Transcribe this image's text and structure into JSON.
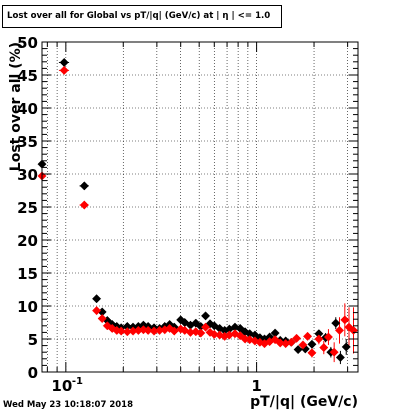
{
  "title": "Lost over all for Global vs pT/|q| (GeV/c) at | η | <= 1.0",
  "timestamp": "Wed May 23 10:18:07 2018",
  "colors": {
    "series_black": "#000000",
    "series_red": "#ff0000",
    "frame": "#000000",
    "grid": "#000000"
  },
  "chart_data": {
    "type": "scatter",
    "title": "Lost over all for Global vs pT/|q| (GeV/c) at | η | <= 1.0",
    "xlabel": "pT/|q| (GeV/c)",
    "ylabel": "Lost over all (%)",
    "x_scale": "log",
    "xlim": [
      0.075,
      3.4
    ],
    "ylim": [
      0,
      50
    ],
    "grid": true,
    "x_tick_labels": [
      {
        "value": 0.1,
        "label": "10",
        "exp": "-1"
      },
      {
        "value": 1,
        "label": "1",
        "exp": ""
      }
    ],
    "y_tick_labels": [
      "0",
      "5",
      "10",
      "15",
      "20",
      "25",
      "30",
      "35",
      "40",
      "45",
      "50"
    ],
    "series": [
      {
        "color": "#000000",
        "points": [
          [
            0.075,
            31.5,
            0,
            0.5
          ],
          [
            0.098,
            46.9,
            0.006,
            0.5
          ],
          [
            0.125,
            28.2,
            0.007,
            0.4
          ],
          [
            0.145,
            11.1,
            0.004,
            0.3
          ],
          [
            0.155,
            9.1,
            0.004,
            0.3
          ],
          [
            0.165,
            7.8,
            0.004,
            0.3
          ],
          [
            0.175,
            7.2,
            0.004,
            0.3
          ],
          [
            0.185,
            6.9,
            0.004,
            0.3
          ],
          [
            0.195,
            6.7,
            0.004,
            0.3
          ],
          [
            0.21,
            6.9,
            0.005,
            0.3
          ],
          [
            0.225,
            6.8,
            0.005,
            0.3
          ],
          [
            0.24,
            6.9,
            0.005,
            0.3
          ],
          [
            0.255,
            7.1,
            0.006,
            0.3
          ],
          [
            0.27,
            6.9,
            0.006,
            0.3
          ],
          [
            0.29,
            6.7,
            0.006,
            0.3
          ],
          [
            0.31,
            6.6,
            0.007,
            0.3
          ],
          [
            0.33,
            6.9,
            0.007,
            0.3
          ],
          [
            0.35,
            7.2,
            0.008,
            0.3
          ],
          [
            0.37,
            6.8,
            0.008,
            0.3
          ],
          [
            0.4,
            7.9,
            0.009,
            0.3
          ],
          [
            0.42,
            7.5,
            0.009,
            0.3
          ],
          [
            0.45,
            7.1,
            0.01,
            0.3
          ],
          [
            0.48,
            7.4,
            0.01,
            0.3
          ],
          [
            0.51,
            6.9,
            0.011,
            0.3
          ],
          [
            0.54,
            8.5,
            0.012,
            0.3
          ],
          [
            0.57,
            7.3,
            0.012,
            0.3
          ],
          [
            0.6,
            7.0,
            0.013,
            0.3
          ],
          [
            0.64,
            6.6,
            0.014,
            0.3
          ],
          [
            0.68,
            6.3,
            0.015,
            0.3
          ],
          [
            0.72,
            6.5,
            0.016,
            0.3
          ],
          [
            0.77,
            6.8,
            0.017,
            0.3
          ],
          [
            0.82,
            6.6,
            0.018,
            0.3
          ],
          [
            0.87,
            6.1,
            0.019,
            0.3
          ],
          [
            0.92,
            5.8,
            0.02,
            0.3
          ],
          [
            0.98,
            5.6,
            0.021,
            0.3
          ],
          [
            1.04,
            5.2,
            0.023,
            0.3
          ],
          [
            1.1,
            5.0,
            0.024,
            0.3
          ],
          [
            1.17,
            5.3,
            0.026,
            0.3
          ],
          [
            1.25,
            5.9,
            0.027,
            0.4
          ],
          [
            1.33,
            4.8,
            0.029,
            0.4
          ],
          [
            1.42,
            4.7,
            0.031,
            0.4
          ],
          [
            1.52,
            4.5,
            0.033,
            0.4
          ],
          [
            1.65,
            3.4,
            0.04,
            0.5
          ],
          [
            1.8,
            3.5,
            0.04,
            0.5
          ],
          [
            1.95,
            4.2,
            0.04,
            0.5
          ],
          [
            2.12,
            5.8,
            0.05,
            0.6
          ],
          [
            2.3,
            5.2,
            0.05,
            0.7
          ],
          [
            2.45,
            3.0,
            0.05,
            0.8
          ],
          [
            2.6,
            7.4,
            0.05,
            0.9
          ],
          [
            2.75,
            2.2,
            0.05,
            1.0
          ],
          [
            2.95,
            3.8,
            0.05,
            1.2
          ]
        ]
      },
      {
        "color": "#ff0000",
        "points": [
          [
            0.075,
            29.7,
            0,
            0.5
          ],
          [
            0.098,
            45.7,
            0.006,
            0.5
          ],
          [
            0.125,
            25.3,
            0.007,
            0.4
          ],
          [
            0.145,
            9.3,
            0.004,
            0.3
          ],
          [
            0.155,
            8.1,
            0.004,
            0.3
          ],
          [
            0.165,
            7.0,
            0.004,
            0.3
          ],
          [
            0.175,
            6.6,
            0.004,
            0.3
          ],
          [
            0.185,
            6.3,
            0.004,
            0.3
          ],
          [
            0.195,
            6.2,
            0.004,
            0.3
          ],
          [
            0.21,
            6.1,
            0.005,
            0.3
          ],
          [
            0.225,
            6.2,
            0.005,
            0.3
          ],
          [
            0.24,
            6.3,
            0.005,
            0.3
          ],
          [
            0.255,
            6.4,
            0.006,
            0.3
          ],
          [
            0.27,
            6.3,
            0.006,
            0.3
          ],
          [
            0.29,
            6.2,
            0.006,
            0.3
          ],
          [
            0.31,
            6.3,
            0.007,
            0.3
          ],
          [
            0.33,
            6.4,
            0.007,
            0.3
          ],
          [
            0.35,
            6.6,
            0.008,
            0.3
          ],
          [
            0.37,
            6.2,
            0.008,
            0.3
          ],
          [
            0.4,
            6.5,
            0.009,
            0.3
          ],
          [
            0.42,
            6.3,
            0.009,
            0.3
          ],
          [
            0.45,
            6.0,
            0.01,
            0.3
          ],
          [
            0.48,
            6.1,
            0.01,
            0.3
          ],
          [
            0.51,
            5.9,
            0.011,
            0.3
          ],
          [
            0.54,
            6.8,
            0.012,
            0.3
          ],
          [
            0.57,
            6.0,
            0.012,
            0.3
          ],
          [
            0.6,
            5.7,
            0.013,
            0.3
          ],
          [
            0.64,
            5.6,
            0.014,
            0.3
          ],
          [
            0.68,
            5.4,
            0.015,
            0.3
          ],
          [
            0.72,
            5.6,
            0.016,
            0.3
          ],
          [
            0.77,
            5.8,
            0.017,
            0.3
          ],
          [
            0.82,
            5.5,
            0.018,
            0.3
          ],
          [
            0.87,
            5.0,
            0.019,
            0.3
          ],
          [
            0.92,
            4.9,
            0.02,
            0.3
          ],
          [
            0.98,
            4.7,
            0.021,
            0.3
          ],
          [
            1.04,
            4.5,
            0.023,
            0.3
          ],
          [
            1.1,
            4.3,
            0.024,
            0.3
          ],
          [
            1.17,
            4.6,
            0.026,
            0.3
          ],
          [
            1.25,
            4.9,
            0.027,
            0.4
          ],
          [
            1.33,
            4.4,
            0.029,
            0.4
          ],
          [
            1.42,
            4.3,
            0.031,
            0.4
          ],
          [
            1.52,
            4.5,
            0.033,
            0.4
          ],
          [
            1.62,
            5.1,
            0.04,
            0.5
          ],
          [
            1.75,
            4.1,
            0.04,
            0.5
          ],
          [
            1.85,
            5.4,
            0.04,
            0.6
          ],
          [
            1.95,
            2.9,
            0.04,
            0.7
          ],
          [
            2.12,
            5.0,
            0.05,
            0.8
          ],
          [
            2.25,
            3.7,
            0.05,
            1.0
          ],
          [
            2.38,
            5.3,
            0.05,
            1.2
          ],
          [
            2.55,
            3.0,
            0.05,
            1.5
          ],
          [
            2.72,
            6.3,
            0.05,
            2.0
          ],
          [
            2.9,
            7.9,
            0.05,
            2.5
          ],
          [
            3.05,
            6.8,
            0.05,
            3.0
          ],
          [
            3.22,
            6.3,
            0.05,
            3.5
          ]
        ]
      }
    ]
  }
}
